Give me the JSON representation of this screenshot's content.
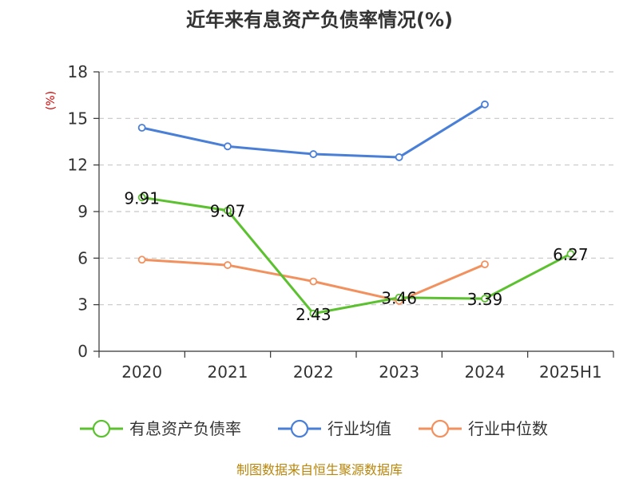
{
  "chart_data": {
    "type": "line",
    "title": "近年来有息资产负债率情况(%)",
    "ylabel": "(%)",
    "xlabel": "",
    "categories": [
      "2020",
      "2021",
      "2022",
      "2023",
      "2024",
      "2025H1"
    ],
    "yticks": [
      0,
      3,
      6,
      9,
      12,
      15,
      18
    ],
    "ylim": [
      0,
      18
    ],
    "grid": "horizontal-dashed",
    "legend_position": "bottom",
    "series": [
      {
        "name": "有息资产负债率",
        "color": "#5cc12f",
        "values": [
          9.91,
          9.07,
          2.43,
          3.46,
          3.39,
          6.27
        ],
        "labels": [
          "9.91",
          "9.07",
          "2.43",
          "3.46",
          "3.39",
          "6.27"
        ]
      },
      {
        "name": "行业均值",
        "color": "#4a7fd8",
        "values": [
          14.4,
          13.2,
          12.7,
          12.5,
          15.9,
          null
        ]
      },
      {
        "name": "行业中位数",
        "color": "#f2915e",
        "values": [
          5.9,
          5.55,
          4.5,
          3.25,
          5.6,
          null
        ]
      }
    ]
  },
  "source": "制图数据来自恒生聚源数据库"
}
